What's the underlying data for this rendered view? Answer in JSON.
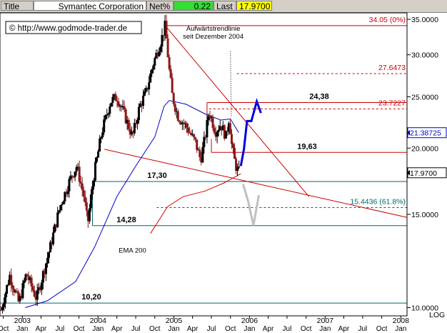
{
  "topbar": {
    "title_label": "Title",
    "title_value": "Symantec Corporation",
    "net_label": "Net%",
    "net_value": "0.22",
    "last_label": "Last",
    "last_value": "17.9700"
  },
  "colors": {
    "candle_up": "#000000",
    "candle_down": "#8b1a1a",
    "resistance": "#cc0000",
    "support": "#006666",
    "ema200": "#dd0000",
    "blue_ma": "#0000cc",
    "projection_blue": "#0000dd",
    "projection_grey": "#c0c0c0",
    "last_tag": "#000000",
    "ma_tag": "#0000cc"
  },
  "watermark": "© http://www.godmode-trader.de",
  "chart_data": {
    "type": "candlestick",
    "y_scale": "log",
    "ylim": [
      9.65,
      36.0
    ],
    "xlim": [
      "2002-09-15",
      "2008-01-31"
    ],
    "y_ticks": [
      "35.0000",
      "30.0000",
      "25.0000",
      "20.0000",
      "15.0000",
      "10.0000"
    ],
    "y_tick_values": [
      35,
      30,
      25,
      20,
      15,
      10
    ],
    "y_axis_label": "LOG",
    "x_year_labels": [
      {
        "label": "2003",
        "date": "2003-01-01"
      },
      {
        "label": "2004",
        "date": "2004-01-01"
      },
      {
        "label": "2005",
        "date": "2005-01-01"
      },
      {
        "label": "2006",
        "date": "2006-01-01"
      },
      {
        "label": "2007",
        "date": "2007-01-01"
      },
      {
        "label": "2008",
        "date": "2008-01-01"
      }
    ],
    "x_month_labels": [
      "Oct",
      "Jan",
      "Apr",
      "Jul",
      "Oct",
      "Jan",
      "Apr",
      "Jul",
      "Oct",
      "Jan",
      "Apr",
      "Jul",
      "Oct",
      "Jan",
      "Apr",
      "Jul",
      "Oct",
      "Jan",
      "Apr",
      "Jul",
      "Oct",
      "Jan"
    ],
    "price_path": [
      {
        "date": "2002-09-20",
        "price": 9.9
      },
      {
        "date": "2002-11-01",
        "price": 11.5
      },
      {
        "date": "2002-12-15",
        "price": 10.2
      },
      {
        "date": "2003-01-20",
        "price": 11.6
      },
      {
        "date": "2003-03-10",
        "price": 10.4
      },
      {
        "date": "2003-05-15",
        "price": 13.0
      },
      {
        "date": "2003-07-01",
        "price": 15.5
      },
      {
        "date": "2003-08-20",
        "price": 17.5
      },
      {
        "date": "2003-09-20",
        "price": 18.5
      },
      {
        "date": "2003-10-25",
        "price": 16.2
      },
      {
        "date": "2003-11-12",
        "price": 14.4
      },
      {
        "date": "2003-12-10",
        "price": 17.6
      },
      {
        "date": "2004-01-20",
        "price": 21.5
      },
      {
        "date": "2004-03-01",
        "price": 24.5
      },
      {
        "date": "2004-04-01",
        "price": 25.0
      },
      {
        "date": "2004-05-01",
        "price": 23.5
      },
      {
        "date": "2004-06-15",
        "price": 21.0
      },
      {
        "date": "2004-07-20",
        "price": 24.0
      },
      {
        "date": "2004-08-20",
        "price": 25.5
      },
      {
        "date": "2004-09-25",
        "price": 29.0
      },
      {
        "date": "2004-11-01",
        "price": 32.0
      },
      {
        "date": "2004-11-20",
        "price": 34.05
      },
      {
        "date": "2004-12-10",
        "price": 28.0
      },
      {
        "date": "2004-12-25",
        "price": 25.0
      },
      {
        "date": "2005-01-20",
        "price": 23.0
      },
      {
        "date": "2005-03-01",
        "price": 22.0
      },
      {
        "date": "2005-04-15",
        "price": 20.5
      },
      {
        "date": "2005-05-10",
        "price": 19.0
      },
      {
        "date": "2005-06-01",
        "price": 21.0
      },
      {
        "date": "2005-06-20",
        "price": 23.5
      },
      {
        "date": "2005-07-20",
        "price": 21.5
      },
      {
        "date": "2005-08-15",
        "price": 22.2
      },
      {
        "date": "2005-09-10",
        "price": 21.0
      },
      {
        "date": "2005-09-25",
        "price": 23.0
      },
      {
        "date": "2005-10-05",
        "price": 20.5
      },
      {
        "date": "2005-10-20",
        "price": 19.0
      },
      {
        "date": "2005-11-01",
        "price": 18.2
      },
      {
        "date": "2005-11-15",
        "price": 17.97
      }
    ],
    "ema200": [
      {
        "date": "2004-09-10",
        "price": 13.8
      },
      {
        "date": "2004-10-15",
        "price": 14.5
      },
      {
        "date": "2004-12-01",
        "price": 15.5
      },
      {
        "date": "2005-02-15",
        "price": 16.2
      },
      {
        "date": "2005-06-01",
        "price": 16.6
      },
      {
        "date": "2005-09-01",
        "price": 17.2
      },
      {
        "date": "2005-11-20",
        "price": 17.9
      }
    ],
    "blue_ma": [
      {
        "date": "2003-01-15",
        "price": 10.0
      },
      {
        "date": "2003-05-01",
        "price": 10.3
      },
      {
        "date": "2003-09-15",
        "price": 11.2
      },
      {
        "date": "2003-12-15",
        "price": 13.0
      },
      {
        "date": "2004-04-01",
        "price": 16.2
      },
      {
        "date": "2004-07-01",
        "price": 18.5
      },
      {
        "date": "2004-10-01",
        "price": 21.0
      },
      {
        "date": "2004-11-15",
        "price": 24.0
      },
      {
        "date": "2004-12-10",
        "price": 24.6
      },
      {
        "date": "2005-03-01",
        "price": 24.2
      },
      {
        "date": "2005-06-01",
        "price": 23.2
      },
      {
        "date": "2005-08-15",
        "price": 22.6
      },
      {
        "date": "2005-10-01",
        "price": 22.7
      },
      {
        "date": "2005-11-10",
        "price": 21.39
      }
    ],
    "horizontal_levels": [
      {
        "value": 34.05,
        "label": "34.05 (0%)",
        "style": "solid",
        "color": "resistance",
        "from": "2004-11-20"
      },
      {
        "value": 27.6473,
        "label": "27.6473",
        "style": "dashed",
        "color": "resistance",
        "from": "2005-11-01"
      },
      {
        "value": 24.38,
        "label": "24,38",
        "style": "solid",
        "color": "resistance",
        "from": "2005-06-10"
      },
      {
        "value": 23.7227,
        "label": "23.7227",
        "style": "dashed",
        "color": "resistance",
        "from": "2005-06-20"
      },
      {
        "value": 19.63,
        "label": "19,63",
        "style": "solid",
        "color": "resistance",
        "from": "2005-07-01"
      },
      {
        "value": 17.3,
        "label": "17,30",
        "style": "solid",
        "color": "support",
        "from": "2003-12-05"
      },
      {
        "value": 15.4436,
        "label": "15.4436 (61.8%)",
        "style": "dashed",
        "color": "support",
        "from": "2004-10-10"
      },
      {
        "value": 14.28,
        "label": "14,28",
        "style": "solid",
        "color": "support",
        "from": "2003-12-05"
      },
      {
        "value": 10.2,
        "label": "10,20",
        "style": "solid",
        "color": "support",
        "from": "2002-09-15"
      }
    ],
    "trendlines": [
      {
        "from": {
          "date": "2004-11-20",
          "price": 34.05
        },
        "to": {
          "date": "2006-10-15",
          "price": 16.2
        },
        "color": "resistance"
      },
      {
        "from": {
          "date": "2004-02-01",
          "price": 19.9
        },
        "to": {
          "date": "2008-01-31",
          "price": 14.8
        },
        "color": "resistance"
      }
    ],
    "bullish_projection": [
      {
        "date": "2005-11-20",
        "price": 18.5
      },
      {
        "date": "2005-12-05",
        "price": 19.9
      },
      {
        "date": "2005-12-20",
        "price": 22.5
      },
      {
        "date": "2006-01-10",
        "price": 22.5
      },
      {
        "date": "2006-02-05",
        "price": 24.5
      },
      {
        "date": "2006-02-25",
        "price": 23.3
      }
    ],
    "bearish_projection": [
      {
        "date": "2005-12-01",
        "price": 17.1
      },
      {
        "date": "2005-12-25",
        "price": 15.9
      },
      {
        "date": "2006-01-20",
        "price": 14.3
      },
      {
        "date": "2006-02-15",
        "price": 16.3
      }
    ],
    "annotations": [
      {
        "text": "Aufwärtstrendlinie",
        "date": "2005-07-10",
        "price": 33.3
      },
      {
        "text": "seit Dezember 2004",
        "date": "2005-07-10",
        "price": 32.2
      },
      {
        "text": "EMA 200",
        "date": "2004-06-15",
        "price": 12.7
      }
    ],
    "price_tags": [
      {
        "label": "21.38725",
        "value": 21.38725,
        "color": "ma_tag"
      },
      {
        "label": "17.9700",
        "value": 17.97,
        "color": "last_tag"
      }
    ]
  }
}
